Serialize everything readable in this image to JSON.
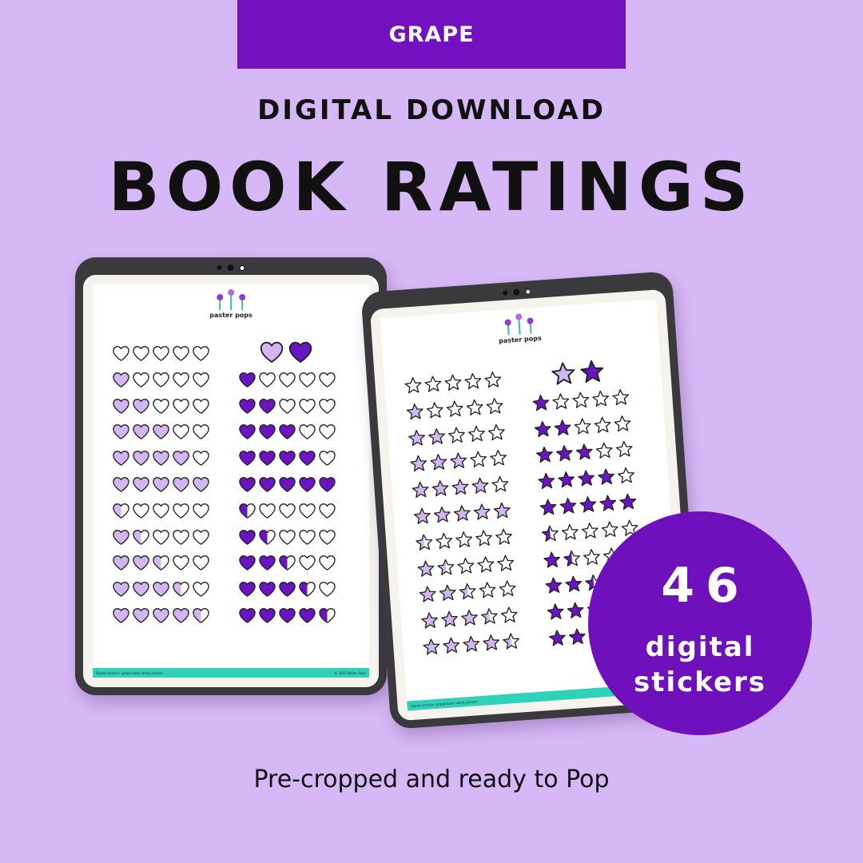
{
  "banner": {
    "label": "GRAPE"
  },
  "header": {
    "kicker": "DIGITAL DOWNLOAD",
    "title": "BOOK RATINGS"
  },
  "colors": {
    "background": "#d7b8f6",
    "banner": "#7310c0",
    "dark_purple": "#6a14c4",
    "light_purple": "#d2b6f2",
    "footer": "#2fd2b8"
  },
  "tablets": [
    {
      "brand": "paster pops",
      "footer_left": "Digital stickers: grape book rating stickers",
      "footer_right": "© 2023 Paster Pops",
      "sticker_icon": "heart-icon",
      "left_sticker_fill": "light",
      "left_ratings": [
        0,
        1,
        2,
        3,
        4,
        5,
        0.5,
        1.5,
        2.5,
        3.5,
        4.5
      ],
      "right_header_pair": "light-and-dark",
      "right_ratings": [
        1,
        2,
        3,
        4,
        5,
        0.5,
        1.5,
        2.5,
        3.5,
        4.5
      ]
    },
    {
      "brand": "paster pops",
      "footer_left": "Digital stickers: grape book rating stickers",
      "footer_right": "",
      "sticker_icon": "star-icon",
      "left_sticker_fill": "light",
      "left_ratings": [
        0,
        1,
        2,
        3,
        4,
        5,
        0.5,
        1.5,
        2.5,
        3.5,
        4.5
      ],
      "right_header_pair": "light-and-dark",
      "right_ratings": [
        1,
        2,
        3,
        4,
        5,
        0.5,
        1.5,
        2.5,
        3.5,
        4.5
      ]
    }
  ],
  "badge": {
    "number": "46",
    "line1": "digital",
    "line2": "stickers"
  },
  "tagline": "Pre-cropped and ready to Pop"
}
